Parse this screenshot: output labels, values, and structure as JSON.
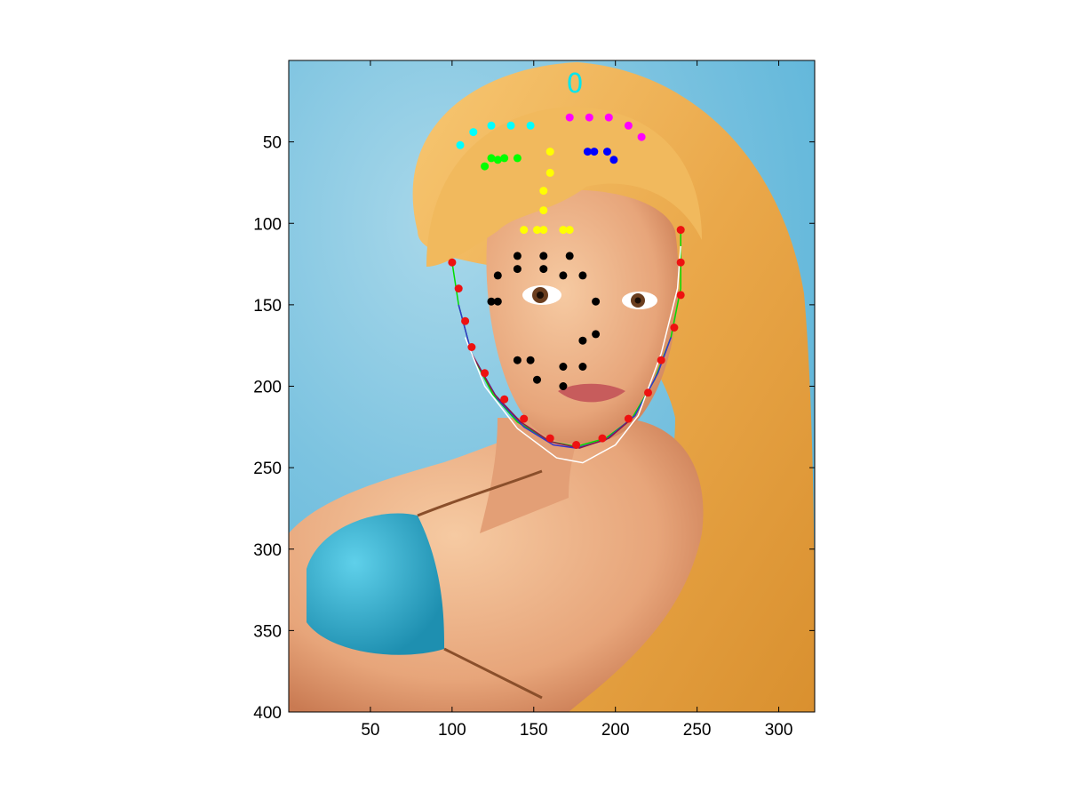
{
  "figure": {
    "title": "0",
    "title_color": "#00e5ee",
    "background_color": "#ffffff"
  },
  "chart_data": {
    "type": "scatter",
    "title": "0",
    "xlabel": "",
    "ylabel": "",
    "xlim": [
      0,
      322
    ],
    "ylim": [
      400,
      0
    ],
    "y_reversed": true,
    "grid": false,
    "x_ticks": [
      50,
      100,
      150,
      200,
      250,
      300
    ],
    "y_ticks": [
      50,
      100,
      150,
      200,
      250,
      300,
      350,
      400
    ],
    "series": [
      {
        "color": "#00ffff",
        "points": [
          [
            105,
            52
          ],
          [
            113,
            44
          ],
          [
            124,
            40
          ],
          [
            136,
            40
          ],
          [
            148,
            40
          ]
        ]
      },
      {
        "color": "#ff00ff",
        "points": [
          [
            172,
            35
          ],
          [
            184,
            35
          ],
          [
            196,
            35
          ],
          [
            208,
            40
          ],
          [
            216,
            47
          ]
        ]
      },
      {
        "color": "#00ff00",
        "points": [
          [
            120,
            65
          ],
          [
            124,
            60
          ],
          [
            128,
            61
          ],
          [
            132,
            60
          ],
          [
            140,
            60
          ]
        ]
      },
      {
        "color": "#0000ff",
        "points": [
          [
            183,
            56
          ],
          [
            187,
            56
          ],
          [
            195,
            56
          ],
          [
            199,
            61
          ]
        ]
      },
      {
        "color": "#ffff00",
        "points": [
          [
            160,
            56
          ],
          [
            160,
            69
          ],
          [
            156,
            80
          ],
          [
            156,
            92
          ],
          [
            144,
            104
          ],
          [
            152,
            104
          ],
          [
            156,
            104
          ],
          [
            168,
            104
          ],
          [
            172,
            104
          ]
        ]
      },
      {
        "color": "#000000",
        "points": [
          [
            140,
            120
          ],
          [
            156,
            120
          ],
          [
            172,
            120
          ],
          [
            140,
            128
          ],
          [
            156,
            128
          ],
          [
            128,
            132
          ],
          [
            168,
            132
          ],
          [
            180,
            132
          ],
          [
            124,
            148
          ],
          [
            128,
            148
          ],
          [
            188,
            148
          ],
          [
            188,
            168
          ],
          [
            180,
            172
          ],
          [
            140,
            184
          ],
          [
            148,
            184
          ],
          [
            168,
            188
          ],
          [
            180,
            188
          ],
          [
            152,
            196
          ],
          [
            168,
            200
          ]
        ]
      },
      {
        "color": "#ee1111",
        "points": [
          [
            100,
            124
          ],
          [
            104,
            140
          ],
          [
            108,
            160
          ],
          [
            112,
            176
          ],
          [
            120,
            192
          ],
          [
            132,
            208
          ],
          [
            144,
            220
          ],
          [
            160,
            232
          ],
          [
            176,
            236
          ],
          [
            192,
            232
          ],
          [
            208,
            220
          ],
          [
            220,
            204
          ],
          [
            228,
            184
          ],
          [
            236,
            164
          ],
          [
            240,
            144
          ],
          [
            240,
            124
          ],
          [
            240,
            104
          ]
        ]
      }
    ],
    "curves": [
      {
        "color": "#00dd00",
        "points": [
          [
            100,
            124
          ],
          [
            104,
            150
          ],
          [
            112,
            180
          ],
          [
            125,
            205
          ],
          [
            140,
            222
          ],
          [
            160,
            234
          ],
          [
            176,
            237
          ],
          [
            194,
            232
          ],
          [
            210,
            220
          ],
          [
            224,
            196
          ],
          [
            234,
            170
          ],
          [
            240,
            140
          ],
          [
            240,
            104
          ]
        ]
      },
      {
        "color": "#3333cc",
        "points": [
          [
            104,
            150
          ],
          [
            112,
            180
          ],
          [
            128,
            208
          ],
          [
            144,
            225
          ],
          [
            162,
            236
          ],
          [
            176,
            238
          ],
          [
            194,
            233
          ],
          [
            212,
            218
          ],
          [
            226,
            192
          ],
          [
            234,
            170
          ]
        ]
      },
      {
        "color": "#8b1a4a",
        "points": [
          [
            112,
            180
          ],
          [
            126,
            205
          ],
          [
            142,
            222
          ],
          [
            160,
            234
          ],
          [
            178,
            238
          ],
          [
            196,
            232
          ],
          [
            210,
            220
          ]
        ]
      },
      {
        "color": "#ffffff",
        "points": [
          [
            108,
            170
          ],
          [
            120,
            200
          ],
          [
            140,
            226
          ],
          [
            164,
            244
          ],
          [
            180,
            247
          ],
          [
            200,
            236
          ],
          [
            214,
            218
          ],
          [
            228,
            180
          ],
          [
            238,
            140
          ],
          [
            240,
            114
          ]
        ]
      }
    ]
  }
}
